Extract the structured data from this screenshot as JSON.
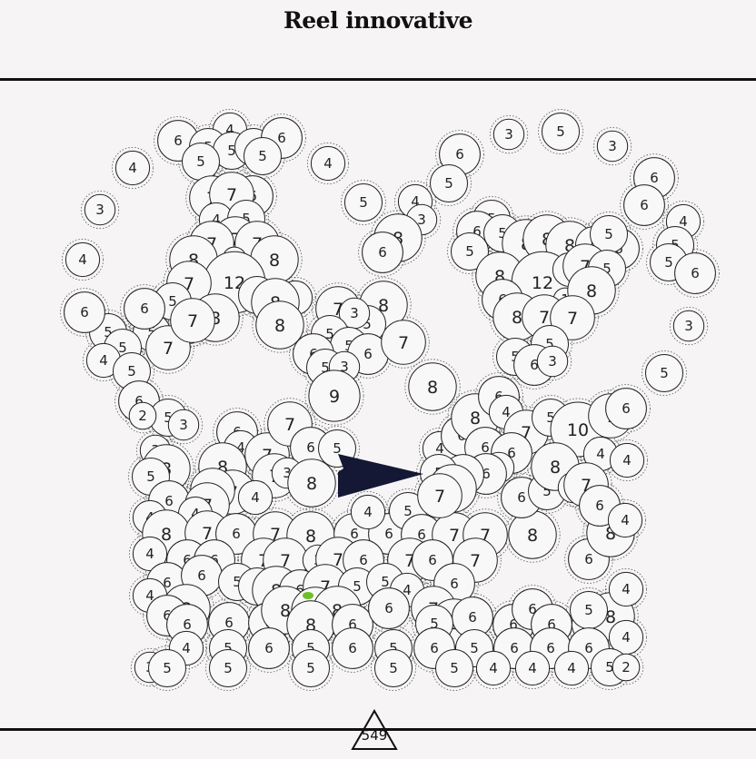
{
  "header": {
    "title": "Reel innovative"
  },
  "counter": {
    "value": "549",
    "icon": "triangle-icon"
  },
  "colors": {
    "bubble_fill": "#f8f8f8",
    "bubble_stroke": "#222222",
    "shooter": "#141834",
    "gem": "#6fbf2a",
    "background": "#f6f4f5"
  },
  "board": {
    "bubbles": [
      [
        253,
        143,
        4
      ],
      [
        196,
        155,
        6
      ],
      [
        229,
        162,
        5
      ],
      [
        255,
        166,
        5
      ],
      [
        279,
        162,
        5
      ],
      [
        310,
        152,
        6
      ],
      [
        289,
        172,
        5
      ],
      [
        221,
        178,
        5
      ],
      [
        146,
        185,
        4
      ],
      [
        361,
        180,
        4
      ],
      [
        233,
        218,
        7
      ],
      [
        278,
        216,
        6
      ],
      [
        255,
        214,
        7
      ],
      [
        110,
        231,
        3
      ],
      [
        238,
        242,
        4
      ],
      [
        271,
        241,
        5
      ],
      [
        259,
        263,
        7
      ],
      [
        283,
        268,
        7
      ],
      [
        233,
        268,
        7
      ],
      [
        213,
        286,
        8
      ],
      [
        258,
        285,
        1
      ],
      [
        290,
        290,
        1
      ],
      [
        302,
        286,
        8
      ],
      [
        258,
        311,
        12
      ],
      [
        208,
        312,
        7
      ],
      [
        190,
        332,
        5
      ],
      [
        283,
        325,
        5
      ],
      [
        325,
        328,
        4
      ],
      [
        303,
        333,
        8
      ],
      [
        237,
        350,
        8
      ],
      [
        207,
        360,
        4
      ],
      [
        167,
        366,
        5
      ],
      [
        159,
        340,
        6
      ],
      [
        119,
        366,
        5
      ],
      [
        93,
        344,
        6
      ],
      [
        91,
        286,
        4
      ],
      [
        135,
        383,
        5
      ],
      [
        114,
        397,
        4
      ],
      [
        145,
        409,
        5
      ],
      [
        185,
        383,
        7
      ],
      [
        212,
        353,
        7
      ],
      [
        308,
        358,
        8
      ],
      [
        560,
        148,
        3
      ],
      [
        617,
        145,
        5
      ],
      [
        674,
        161,
        3
      ],
      [
        506,
        170,
        6
      ],
      [
        494,
        202,
        5
      ],
      [
        457,
        222,
        4
      ],
      [
        464,
        242,
        3
      ],
      [
        400,
        223,
        5
      ],
      [
        438,
        262,
        8
      ],
      [
        421,
        278,
        6
      ],
      [
        541,
        241,
        5
      ],
      [
        525,
        255,
        6
      ],
      [
        553,
        257,
        5
      ],
      [
        517,
        277,
        5
      ],
      [
        579,
        268,
        8
      ],
      [
        602,
        263,
        8
      ],
      [
        627,
        270,
        8
      ],
      [
        654,
        270,
        5
      ],
      [
        681,
        274,
        6
      ],
      [
        670,
        258,
        5
      ],
      [
        720,
        196,
        6
      ],
      [
        709,
        226,
        6
      ],
      [
        752,
        244,
        4
      ],
      [
        743,
        270,
        5
      ],
      [
        736,
        289,
        5
      ],
      [
        765,
        301,
        6
      ],
      [
        550,
        304,
        8
      ],
      [
        597,
        311,
        12
      ],
      [
        627,
        297,
        4
      ],
      [
        644,
        293,
        7
      ],
      [
        668,
        296,
        5
      ],
      [
        622,
        330,
        1
      ],
      [
        651,
        320,
        8
      ],
      [
        553,
        330,
        6
      ],
      [
        569,
        349,
        8
      ],
      [
        599,
        349,
        7
      ],
      [
        630,
        350,
        7
      ],
      [
        567,
        393,
        5
      ],
      [
        605,
        379,
        5
      ],
      [
        588,
        402,
        6
      ],
      [
        608,
        398,
        3
      ],
      [
        758,
        359,
        3
      ],
      [
        731,
        411,
        5
      ],
      [
        422,
        336,
        8
      ],
      [
        372,
        340,
        7
      ],
      [
        404,
        357,
        5
      ],
      [
        390,
        345,
        3
      ],
      [
        363,
        368,
        5
      ],
      [
        384,
        381,
        5
      ],
      [
        405,
        390,
        6
      ],
      [
        345,
        390,
        6
      ],
      [
        358,
        405,
        5
      ],
      [
        379,
        404,
        3
      ],
      [
        444,
        377,
        7
      ],
      [
        368,
        436,
        9
      ],
      [
        476,
        426,
        8
      ],
      [
        153,
        442,
        6
      ],
      [
        185,
        460,
        5
      ],
      [
        202,
        468,
        3
      ],
      [
        157,
        458,
        2
      ],
      [
        171,
        496,
        3
      ],
      [
        183,
        516,
        8
      ],
      [
        166,
        525,
        5
      ],
      [
        186,
        552,
        6
      ],
      [
        261,
        476,
        6
      ],
      [
        265,
        493,
        4
      ],
      [
        294,
        501,
        7
      ],
      [
        319,
        467,
        7
      ],
      [
        342,
        493,
        6
      ],
      [
        371,
        494,
        5
      ],
      [
        245,
        514,
        8
      ],
      [
        256,
        542,
        7
      ],
      [
        234,
        540,
        7
      ],
      [
        228,
        556,
        7
      ],
      [
        215,
        566,
        4
      ],
      [
        302,
        524,
        7
      ],
      [
        316,
        521,
        3
      ],
      [
        343,
        532,
        8
      ],
      [
        281,
        548,
        4
      ],
      [
        165,
        570,
        4
      ],
      [
        183,
        588,
        8
      ],
      [
        228,
        587,
        7
      ],
      [
        260,
        588,
        6
      ],
      [
        303,
        588,
        7
      ],
      [
        342,
        590,
        8
      ],
      [
        390,
        588,
        6
      ],
      [
        428,
        588,
        6
      ],
      [
        405,
        564,
        4
      ],
      [
        449,
        563,
        5
      ],
      [
        464,
        589,
        6
      ],
      [
        500,
        589,
        7
      ],
      [
        534,
        589,
        7
      ],
      [
        586,
        589,
        8
      ],
      [
        648,
        616,
        6
      ],
      [
        672,
        587,
        8
      ],
      [
        165,
        610,
        4
      ],
      [
        206,
        617,
        6
      ],
      [
        236,
        617,
        6
      ],
      [
        290,
        617,
        7
      ],
      [
        314,
        617,
        7
      ],
      [
        350,
        617,
        3
      ],
      [
        372,
        616,
        7
      ],
      [
        400,
        617,
        6
      ],
      [
        451,
        617,
        7
      ],
      [
        476,
        617,
        6
      ],
      [
        523,
        617,
        7
      ],
      [
        184,
        642,
        6
      ],
      [
        222,
        634,
        6
      ],
      [
        261,
        641,
        5
      ],
      [
        283,
        646,
        5
      ],
      [
        304,
        650,
        8
      ],
      [
        330,
        650,
        6
      ],
      [
        358,
        646,
        7
      ],
      [
        393,
        646,
        5
      ],
      [
        424,
        641,
        5
      ],
      [
        448,
        650,
        4
      ],
      [
        500,
        643,
        6
      ],
      [
        165,
        656,
        4
      ],
      [
        205,
        670,
        8
      ],
      [
        184,
        678,
        6
      ],
      [
        206,
        688,
        6
      ],
      [
        252,
        686,
        6
      ],
      [
        296,
        686,
        6
      ],
      [
        314,
        672,
        8
      ],
      [
        347,
        673,
        8
      ],
      [
        371,
        672,
        8
      ],
      [
        342,
        688,
        8
      ],
      [
        388,
        688,
        6
      ],
      [
        428,
        670,
        6
      ],
      [
        477,
        670,
        7
      ],
      [
        500,
        686,
        8
      ],
      [
        520,
        680,
        6
      ],
      [
        478,
        687,
        5
      ],
      [
        565,
        688,
        6
      ],
      [
        586,
        671,
        6
      ],
      [
        607,
        688,
        6
      ],
      [
        648,
        688,
        4
      ],
      [
        672,
        679,
        8
      ],
      [
        689,
        649,
        4
      ],
      [
        648,
        672,
        5
      ],
      [
        205,
        714,
        4
      ],
      [
        251,
        714,
        5
      ],
      [
        296,
        714,
        6
      ],
      [
        342,
        714,
        5
      ],
      [
        388,
        714,
        6
      ],
      [
        433,
        714,
        5
      ],
      [
        478,
        714,
        6
      ],
      [
        522,
        714,
        5
      ],
      [
        566,
        714,
        6
      ],
      [
        606,
        714,
        6
      ],
      [
        648,
        714,
        6
      ],
      [
        689,
        702,
        4
      ],
      [
        165,
        735,
        3
      ],
      [
        184,
        736,
        5
      ],
      [
        251,
        736,
        5
      ],
      [
        342,
        736,
        5
      ],
      [
        433,
        736,
        5
      ],
      [
        500,
        736,
        5
      ],
      [
        543,
        736,
        4
      ],
      [
        586,
        736,
        4
      ],
      [
        629,
        736,
        4
      ],
      [
        671,
        735,
        5
      ],
      [
        689,
        735,
        2
      ],
      [
        484,
        494,
        4
      ],
      [
        508,
        480,
        6
      ],
      [
        523,
        460,
        8
      ],
      [
        549,
        437,
        6
      ],
      [
        557,
        454,
        4
      ],
      [
        579,
        476,
        7
      ],
      [
        606,
        460,
        5
      ],
      [
        636,
        473,
        10
      ],
      [
        672,
        458,
        7
      ],
      [
        689,
        450,
        6
      ],
      [
        661,
        500,
        4
      ],
      [
        690,
        507,
        4
      ],
      [
        534,
        493,
        6
      ],
      [
        563,
        499,
        6
      ],
      [
        549,
        515,
        3
      ],
      [
        535,
        522,
        6
      ],
      [
        510,
        523,
        6
      ],
      [
        483,
        521,
        5
      ],
      [
        494,
        539,
        3
      ],
      [
        498,
        538,
        8
      ],
      [
        484,
        546,
        7
      ],
      [
        574,
        548,
        6
      ],
      [
        602,
        541,
        5
      ],
      [
        611,
        514,
        8
      ],
      [
        631,
        537,
        3
      ],
      [
        645,
        534,
        7
      ],
      [
        660,
        557,
        6
      ],
      [
        688,
        573,
        4
      ]
    ],
    "shooter": {
      "label": "shooter-arrow"
    },
    "gem": {
      "label": "green-gem"
    }
  }
}
